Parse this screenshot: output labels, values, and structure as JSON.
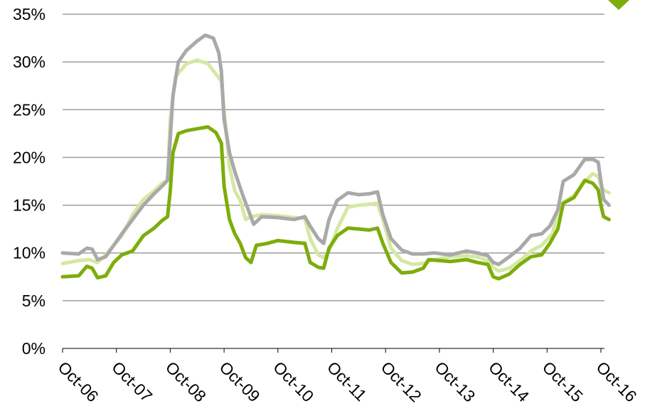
{
  "chart_data": {
    "type": "line",
    "title": "",
    "xlabel": "",
    "ylabel": "",
    "x_tick_labels": [
      "Oct-06",
      "Oct-07",
      "Oct-08",
      "Oct-09",
      "Oct-10",
      "Oct-11",
      "Oct-12",
      "Oct-13",
      "Oct-14",
      "Oct-15",
      "Oct-16"
    ],
    "y_tick_labels": [
      "0%",
      "5%",
      "10%",
      "15%",
      "20%",
      "25%",
      "30%",
      "35%"
    ],
    "y_ticks": [
      0,
      5,
      10,
      15,
      20,
      25,
      30,
      35
    ],
    "ylim": [
      0,
      35
    ],
    "xlim": [
      "Oct-06",
      "Oct-16"
    ],
    "x_unit": "years since Oct-06",
    "grid": "horizontal",
    "legend": "none",
    "series": [
      {
        "color": "#d5e8a4",
        "points": [
          [
            0.0,
            8.9
          ],
          [
            0.3,
            9.2
          ],
          [
            0.5,
            9.3
          ],
          [
            0.65,
            9.0
          ],
          [
            0.8,
            9.8
          ],
          [
            0.95,
            10.8
          ],
          [
            1.1,
            11.8
          ],
          [
            1.3,
            14.0
          ],
          [
            1.5,
            15.6
          ],
          [
            1.7,
            16.5
          ],
          [
            1.85,
            17.3
          ],
          [
            1.95,
            17.6
          ],
          [
            2.0,
            24.0
          ],
          [
            2.1,
            28.5
          ],
          [
            2.3,
            29.8
          ],
          [
            2.5,
            30.2
          ],
          [
            2.7,
            29.8
          ],
          [
            2.95,
            28.0
          ],
          [
            3.0,
            25.0
          ],
          [
            3.1,
            19.0
          ],
          [
            3.2,
            16.5
          ],
          [
            3.3,
            15.5
          ],
          [
            3.4,
            13.5
          ],
          [
            3.5,
            13.8
          ],
          [
            3.7,
            14.0
          ],
          [
            4.0,
            13.9
          ],
          [
            4.3,
            13.7
          ],
          [
            4.5,
            13.6
          ],
          [
            4.6,
            11.5
          ],
          [
            4.75,
            9.8
          ],
          [
            4.85,
            9.5
          ],
          [
            4.95,
            10.2
          ],
          [
            5.1,
            12.5
          ],
          [
            5.3,
            14.8
          ],
          [
            5.5,
            15.0
          ],
          [
            5.7,
            15.1
          ],
          [
            5.85,
            15.2
          ],
          [
            5.95,
            13.5
          ],
          [
            6.1,
            10.5
          ],
          [
            6.3,
            9.2
          ],
          [
            6.5,
            8.8
          ],
          [
            6.7,
            8.9
          ],
          [
            6.9,
            9.3
          ],
          [
            7.2,
            9.6
          ],
          [
            7.5,
            9.7
          ],
          [
            7.7,
            9.6
          ],
          [
            7.9,
            9.2
          ],
          [
            8.0,
            8.5
          ],
          [
            8.1,
            8.1
          ],
          [
            8.3,
            8.4
          ],
          [
            8.5,
            9.2
          ],
          [
            8.7,
            10.2
          ],
          [
            8.9,
            10.8
          ],
          [
            9.1,
            12.0
          ],
          [
            9.2,
            14.5
          ],
          [
            9.3,
            15.3
          ],
          [
            9.5,
            16.0
          ],
          [
            9.7,
            17.5
          ],
          [
            9.85,
            18.3
          ],
          [
            9.95,
            18.0
          ],
          [
            10.0,
            17.0
          ],
          [
            10.05,
            16.6
          ],
          [
            10.15,
            16.3
          ]
        ]
      },
      {
        "color": "#a9a9a9",
        "points": [
          [
            0.0,
            10.0
          ],
          [
            0.3,
            9.9
          ],
          [
            0.45,
            10.5
          ],
          [
            0.55,
            10.4
          ],
          [
            0.65,
            9.3
          ],
          [
            0.8,
            9.6
          ],
          [
            0.95,
            10.8
          ],
          [
            1.1,
            12.0
          ],
          [
            1.3,
            13.5
          ],
          [
            1.5,
            15.0
          ],
          [
            1.7,
            16.2
          ],
          [
            1.85,
            17.0
          ],
          [
            1.95,
            17.6
          ],
          [
            2.0,
            22.0
          ],
          [
            2.05,
            26.5
          ],
          [
            2.15,
            30.0
          ],
          [
            2.3,
            31.2
          ],
          [
            2.5,
            32.2
          ],
          [
            2.65,
            32.8
          ],
          [
            2.8,
            32.5
          ],
          [
            2.9,
            31.0
          ],
          [
            2.95,
            29.0
          ],
          [
            3.0,
            24.0
          ],
          [
            3.1,
            20.5
          ],
          [
            3.2,
            18.5
          ],
          [
            3.35,
            16.0
          ],
          [
            3.45,
            14.5
          ],
          [
            3.55,
            13.0
          ],
          [
            3.7,
            13.8
          ],
          [
            4.0,
            13.7
          ],
          [
            4.3,
            13.5
          ],
          [
            4.5,
            13.8
          ],
          [
            4.6,
            12.8
          ],
          [
            4.75,
            11.5
          ],
          [
            4.85,
            11.0
          ],
          [
            4.95,
            13.5
          ],
          [
            5.1,
            15.5
          ],
          [
            5.3,
            16.3
          ],
          [
            5.5,
            16.1
          ],
          [
            5.7,
            16.2
          ],
          [
            5.85,
            16.4
          ],
          [
            5.95,
            14.0
          ],
          [
            6.1,
            11.5
          ],
          [
            6.3,
            10.3
          ],
          [
            6.5,
            9.9
          ],
          [
            6.7,
            9.9
          ],
          [
            6.9,
            10.0
          ],
          [
            7.2,
            9.8
          ],
          [
            7.5,
            10.2
          ],
          [
            7.7,
            10.0
          ],
          [
            7.9,
            9.7
          ],
          [
            8.0,
            9.0
          ],
          [
            8.1,
            8.8
          ],
          [
            8.3,
            9.6
          ],
          [
            8.5,
            10.5
          ],
          [
            8.7,
            11.8
          ],
          [
            8.9,
            12.0
          ],
          [
            9.05,
            12.8
          ],
          [
            9.2,
            14.5
          ],
          [
            9.3,
            17.5
          ],
          [
            9.5,
            18.2
          ],
          [
            9.7,
            19.8
          ],
          [
            9.85,
            19.8
          ],
          [
            9.95,
            19.5
          ],
          [
            10.0,
            17.5
          ],
          [
            10.05,
            15.6
          ],
          [
            10.15,
            15.0
          ]
        ]
      },
      {
        "color": "#7dad0b",
        "points": [
          [
            0.0,
            7.5
          ],
          [
            0.3,
            7.6
          ],
          [
            0.45,
            8.6
          ],
          [
            0.55,
            8.4
          ],
          [
            0.65,
            7.4
          ],
          [
            0.8,
            7.6
          ],
          [
            0.95,
            9.0
          ],
          [
            1.1,
            9.8
          ],
          [
            1.3,
            10.2
          ],
          [
            1.5,
            11.8
          ],
          [
            1.7,
            12.6
          ],
          [
            1.85,
            13.4
          ],
          [
            1.95,
            13.8
          ],
          [
            2.0,
            16.5
          ],
          [
            2.05,
            20.5
          ],
          [
            2.15,
            22.5
          ],
          [
            2.3,
            22.8
          ],
          [
            2.5,
            23.0
          ],
          [
            2.7,
            23.2
          ],
          [
            2.85,
            22.6
          ],
          [
            2.95,
            21.5
          ],
          [
            3.0,
            17.0
          ],
          [
            3.1,
            13.5
          ],
          [
            3.2,
            12.0
          ],
          [
            3.3,
            11.0
          ],
          [
            3.4,
            9.5
          ],
          [
            3.5,
            9.0
          ],
          [
            3.6,
            10.8
          ],
          [
            3.8,
            11.0
          ],
          [
            4.0,
            11.3
          ],
          [
            4.3,
            11.1
          ],
          [
            4.5,
            11.0
          ],
          [
            4.6,
            9.0
          ],
          [
            4.75,
            8.5
          ],
          [
            4.85,
            8.4
          ],
          [
            4.95,
            10.5
          ],
          [
            5.1,
            11.8
          ],
          [
            5.3,
            12.6
          ],
          [
            5.5,
            12.5
          ],
          [
            5.7,
            12.4
          ],
          [
            5.85,
            12.6
          ],
          [
            5.95,
            11.0
          ],
          [
            6.1,
            9.0
          ],
          [
            6.3,
            7.9
          ],
          [
            6.5,
            8.0
          ],
          [
            6.7,
            8.4
          ],
          [
            6.8,
            9.3
          ],
          [
            7.2,
            9.1
          ],
          [
            7.5,
            9.3
          ],
          [
            7.7,
            9.0
          ],
          [
            7.9,
            8.8
          ],
          [
            8.0,
            7.5
          ],
          [
            8.1,
            7.3
          ],
          [
            8.3,
            7.8
          ],
          [
            8.5,
            8.8
          ],
          [
            8.7,
            9.6
          ],
          [
            8.9,
            9.8
          ],
          [
            9.05,
            11.0
          ],
          [
            9.2,
            12.5
          ],
          [
            9.3,
            15.2
          ],
          [
            9.5,
            15.8
          ],
          [
            9.7,
            17.6
          ],
          [
            9.85,
            17.3
          ],
          [
            9.95,
            16.6
          ],
          [
            10.0,
            15.0
          ],
          [
            10.05,
            13.8
          ],
          [
            10.15,
            13.5
          ]
        ]
      }
    ]
  },
  "decorations": {
    "corner_marker": {
      "color": "#7dad0b",
      "shape": "diamond"
    }
  }
}
